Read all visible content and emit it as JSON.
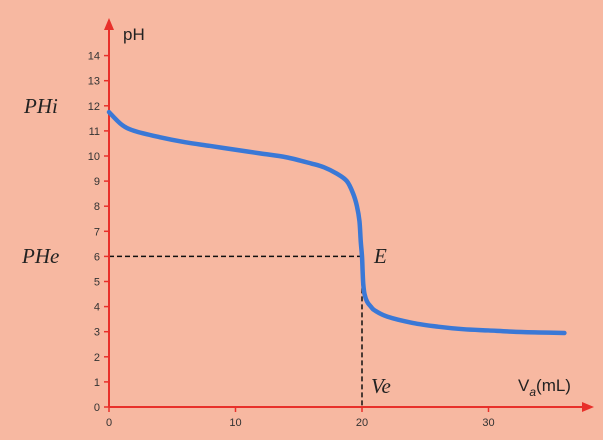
{
  "chart_data": {
    "type": "line",
    "title": "",
    "xlabel": {
      "main": "V",
      "sub": "a",
      "rest": "(mL)"
    },
    "ylabel": "pH",
    "xlim": [
      0,
      38
    ],
    "ylim": [
      0,
      15
    ],
    "x_ticks": [
      0,
      10,
      20,
      30
    ],
    "x_tick_labels": [
      "0",
      "10",
      "20",
      "30"
    ],
    "y_ticks": [
      0,
      1,
      2,
      3,
      4,
      5,
      6,
      7,
      8,
      9,
      10,
      11,
      12,
      13,
      14
    ],
    "y_tick_labels": [
      "0",
      "1",
      "2",
      "3",
      "4",
      "5",
      "6",
      "7",
      "8",
      "9",
      "10",
      "11",
      "12",
      "13",
      "14"
    ],
    "grid": false,
    "legend": "none",
    "series": [
      {
        "x": [
          0,
          1,
          2,
          4,
          6,
          8,
          10,
          12,
          14,
          16,
          17,
          18,
          18.8,
          19.3,
          19.6,
          19.8,
          19.9,
          20.0,
          20.05,
          20.1,
          20.2,
          20.4,
          20.7,
          21,
          22,
          24,
          26,
          28,
          30,
          32,
          34,
          36
        ],
        "y": [
          11.75,
          11.25,
          11.0,
          10.75,
          10.55,
          10.4,
          10.25,
          10.1,
          9.95,
          9.7,
          9.55,
          9.3,
          9.0,
          8.5,
          8.0,
          7.4,
          6.6,
          6.0,
          5.4,
          4.9,
          4.5,
          4.2,
          4.0,
          3.85,
          3.6,
          3.35,
          3.2,
          3.1,
          3.05,
          3.0,
          2.97,
          2.95
        ]
      }
    ],
    "annotations": {
      "phi_label": "PHi",
      "phi_value": 11.75,
      "phe_label": "PHe",
      "phe_value": 6,
      "e_label": "E",
      "ve_label": "Ve",
      "ve_value": 20
    },
    "colors": {
      "background": "#f7b8a1",
      "axes": "#e8302a",
      "curve": "#3a78d6",
      "dashed": "#111111"
    }
  }
}
